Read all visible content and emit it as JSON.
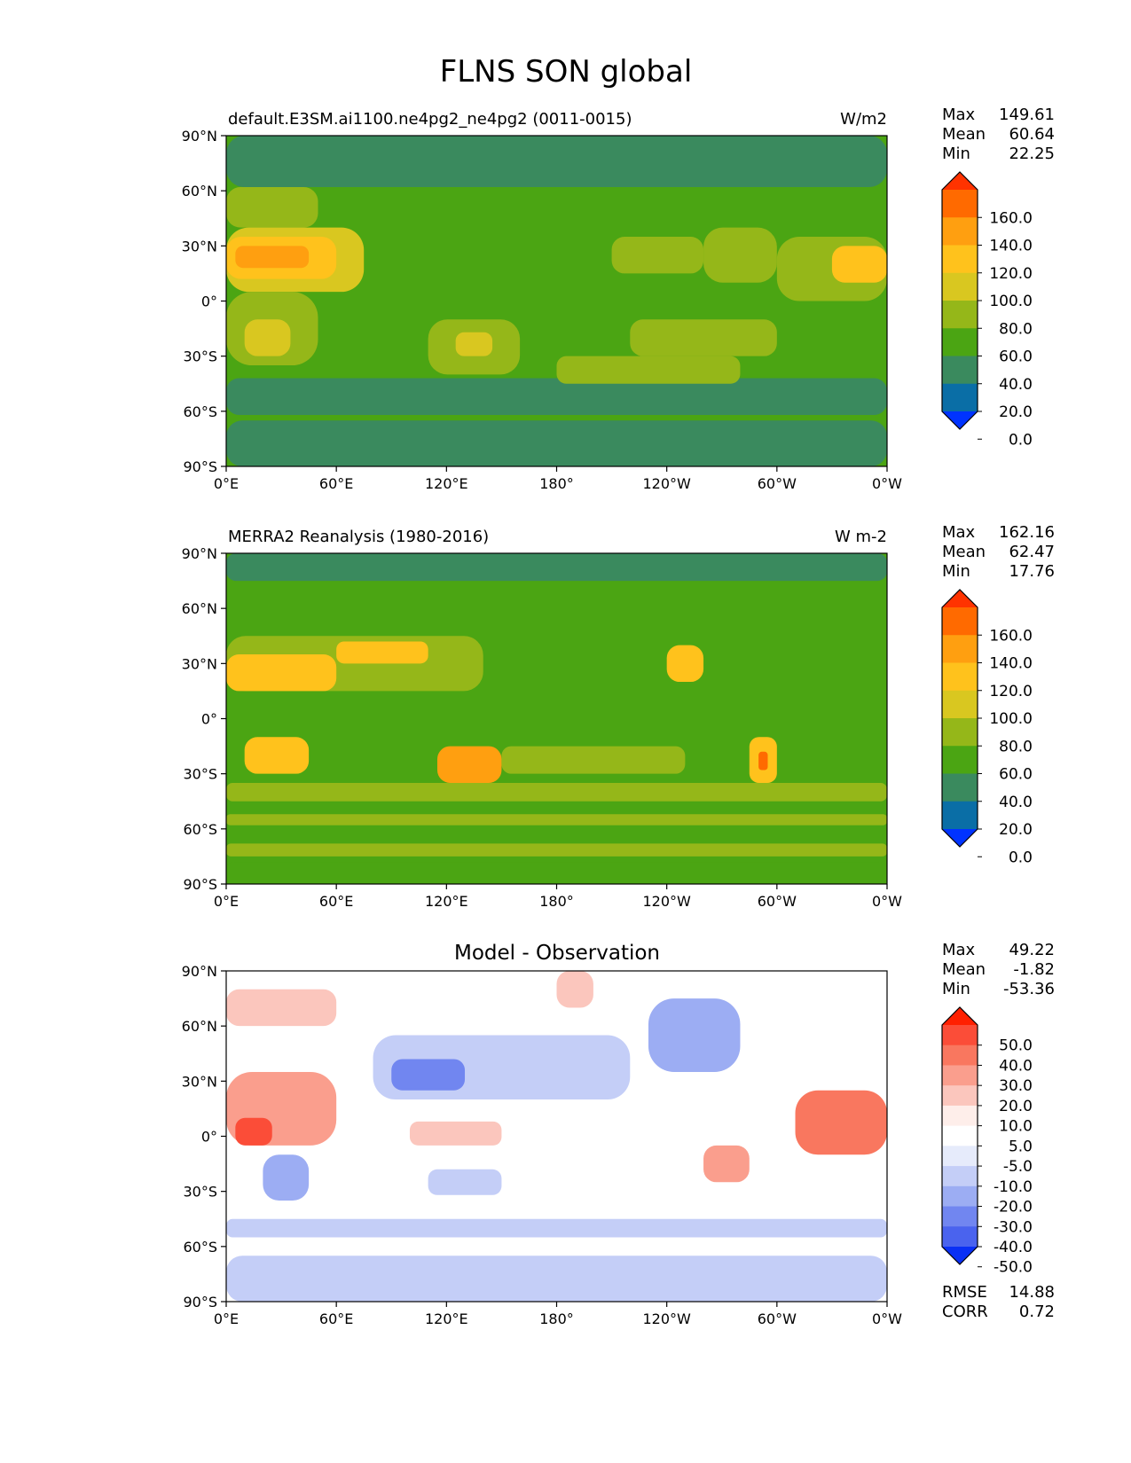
{
  "figure_title": "FLNS SON global",
  "chart_data": [
    {
      "type": "heatmap",
      "title_left": "default.E3SM.ai1100.ne4pg2_ne4pg2 (0011-0015)",
      "title_center": "",
      "units": "W/m2",
      "xlim": [
        0,
        360
      ],
      "ylim": [
        -90,
        90
      ],
      "x_ticks": [
        "0°E",
        "60°E",
        "120°E",
        "180°",
        "120°W",
        "60°W",
        "0°W"
      ],
      "y_ticks": [
        "90°S",
        "60°S",
        "30°S",
        "0°",
        "30°N",
        "60°N",
        "90°N"
      ],
      "stats": {
        "max_label": "Max",
        "max": "149.61",
        "mean_label": "Mean",
        "mean": "60.64",
        "min_label": "Min",
        "min": "22.25"
      },
      "colorbar": {
        "labels": [
          "160.0",
          "140.0",
          "120.0",
          "100.0",
          "80.0",
          "60.0",
          "40.0",
          "20.0",
          "0.0"
        ],
        "colors": [
          "#ff3300",
          "#ff6a00",
          "#ff9f10",
          "#ffc21c",
          "#d9c720",
          "#95b719",
          "#4ba513",
          "#3a8a5e",
          "#0a6ea6",
          "#0033ff"
        ]
      },
      "regions": [
        {
          "lon": [
            0,
            360
          ],
          "lat": [
            -90,
            90
          ],
          "value": 50
        },
        {
          "lon": [
            0,
            360
          ],
          "lat": [
            62,
            90
          ],
          "value": 35
        },
        {
          "lon": [
            0,
            360
          ],
          "lat": [
            -90,
            -65
          ],
          "value": 35
        },
        {
          "lon": [
            0,
            360
          ],
          "lat": [
            -62,
            -42
          ],
          "value": 35
        },
        {
          "lon": [
            0,
            50
          ],
          "lat": [
            40,
            62
          ],
          "value": 70
        },
        {
          "lon": [
            0,
            75
          ],
          "lat": [
            5,
            40
          ],
          "value": 80
        },
        {
          "lon": [
            0,
            60
          ],
          "lat": [
            12,
            35
          ],
          "value": 110
        },
        {
          "lon": [
            5,
            45
          ],
          "lat": [
            18,
            30
          ],
          "value": 125
        },
        {
          "lon": [
            0,
            50
          ],
          "lat": [
            -35,
            5
          ],
          "value": 75
        },
        {
          "lon": [
            10,
            35
          ],
          "lat": [
            -30,
            -10
          ],
          "value": 95
        },
        {
          "lon": [
            110,
            160
          ],
          "lat": [
            -40,
            -10
          ],
          "value": 75
        },
        {
          "lon": [
            125,
            145
          ],
          "lat": [
            -30,
            -17
          ],
          "value": 95
        },
        {
          "lon": [
            220,
            300
          ],
          "lat": [
            -30,
            -10
          ],
          "value": 70
        },
        {
          "lon": [
            260,
            300
          ],
          "lat": [
            10,
            40
          ],
          "value": 65
        },
        {
          "lon": [
            300,
            360
          ],
          "lat": [
            0,
            35
          ],
          "value": 75
        },
        {
          "lon": [
            330,
            360
          ],
          "lat": [
            10,
            30
          ],
          "value": 110
        },
        {
          "lon": [
            180,
            280
          ],
          "lat": [
            -45,
            -30
          ],
          "value": 60
        },
        {
          "lon": [
            210,
            260
          ],
          "lat": [
            15,
            35
          ],
          "value": 62
        }
      ]
    },
    {
      "type": "heatmap",
      "title_left": "MERRA2 Reanalysis (1980-2016)",
      "title_center": "",
      "units": "W m-2",
      "xlim": [
        0,
        360
      ],
      "ylim": [
        -90,
        90
      ],
      "x_ticks": [
        "0°E",
        "60°E",
        "120°E",
        "180°",
        "120°W",
        "60°W",
        "0°W"
      ],
      "y_ticks": [
        "90°S",
        "60°S",
        "30°S",
        "0°",
        "30°N",
        "60°N",
        "90°N"
      ],
      "stats": {
        "max_label": "Max",
        "max": "162.16",
        "mean_label": "Mean",
        "mean": "62.47",
        "min_label": "Min",
        "min": "17.76"
      },
      "colorbar": {
        "labels": [
          "160.0",
          "140.0",
          "120.0",
          "100.0",
          "80.0",
          "60.0",
          "40.0",
          "20.0",
          "0.0"
        ],
        "colors": [
          "#ff3300",
          "#ff6a00",
          "#ff9f10",
          "#ffc21c",
          "#d9c720",
          "#95b719",
          "#4ba513",
          "#3a8a5e",
          "#0a6ea6",
          "#0033ff"
        ]
      },
      "regions": [
        {
          "lon": [
            0,
            360
          ],
          "lat": [
            -90,
            90
          ],
          "value": 50
        },
        {
          "lon": [
            0,
            360
          ],
          "lat": [
            75,
            90
          ],
          "value": 35
        },
        {
          "lon": [
            0,
            360
          ],
          "lat": [
            -58,
            -52
          ],
          "value": 65
        },
        {
          "lon": [
            0,
            360
          ],
          "lat": [
            -75,
            -68
          ],
          "value": 70
        },
        {
          "lon": [
            0,
            360
          ],
          "lat": [
            -90,
            -78
          ],
          "value": 50
        },
        {
          "lon": [
            0,
            140
          ],
          "lat": [
            15,
            45
          ],
          "value": 75
        },
        {
          "lon": [
            0,
            60
          ],
          "lat": [
            15,
            35
          ],
          "value": 110
        },
        {
          "lon": [
            60,
            110
          ],
          "lat": [
            30,
            42
          ],
          "value": 115
        },
        {
          "lon": [
            10,
            45
          ],
          "lat": [
            -30,
            -10
          ],
          "value": 110
        },
        {
          "lon": [
            115,
            150
          ],
          "lat": [
            -35,
            -15
          ],
          "value": 120
        },
        {
          "lon": [
            240,
            260
          ],
          "lat": [
            20,
            40
          ],
          "value": 105
        },
        {
          "lon": [
            285,
            300
          ],
          "lat": [
            -35,
            -10
          ],
          "value": 110
        },
        {
          "lon": [
            290,
            295
          ],
          "lat": [
            -28,
            -18
          ],
          "value": 150
        },
        {
          "lon": [
            0,
            360
          ],
          "lat": [
            -45,
            -35
          ],
          "value": 62
        },
        {
          "lon": [
            150,
            250
          ],
          "lat": [
            -30,
            -15
          ],
          "value": 62
        }
      ]
    },
    {
      "type": "heatmap",
      "title_left": "",
      "title_center": "Model - Observation",
      "units": "",
      "xlim": [
        0,
        360
      ],
      "ylim": [
        -90,
        90
      ],
      "x_ticks": [
        "0°E",
        "60°E",
        "120°E",
        "180°",
        "120°W",
        "60°W",
        "0°W"
      ],
      "y_ticks": [
        "90°S",
        "60°S",
        "30°S",
        "0°",
        "30°N",
        "60°N",
        "90°N"
      ],
      "stats": {
        "max_label": "Max",
        "max": "49.22",
        "mean_label": "Mean",
        "mean": "-1.82",
        "min_label": "Min",
        "min": "-53.36"
      },
      "extra_stats": {
        "rmse_label": "RMSE",
        "rmse": "14.88",
        "corr_label": "CORR",
        "corr": "0.72"
      },
      "colorbar": {
        "labels": [
          "50.0",
          "40.0",
          "30.0",
          "20.0",
          "10.0",
          "5.0",
          "-5.0",
          "-10.0",
          "-20.0",
          "-30.0",
          "-40.0",
          "-50.0"
        ],
        "colors": [
          "#ff2000",
          "#fb4d38",
          "#f9775f",
          "#fa9e8d",
          "#fbc6bd",
          "#feeeea",
          "#ffffff",
          "#e6ebfb",
          "#c4cef7",
          "#9cadf3",
          "#7186f0",
          "#4a63ee",
          "#0a30f5"
        ]
      },
      "regions": [
        {
          "lon": [
            0,
            360
          ],
          "lat": [
            -90,
            90
          ],
          "value": 0
        },
        {
          "lon": [
            80,
            220
          ],
          "lat": [
            20,
            55
          ],
          "value": -18
        },
        {
          "lon": [
            90,
            130
          ],
          "lat": [
            25,
            42
          ],
          "value": -40
        },
        {
          "lon": [
            230,
            280
          ],
          "lat": [
            35,
            75
          ],
          "value": -22
        },
        {
          "lon": [
            0,
            60
          ],
          "lat": [
            -5,
            35
          ],
          "value": 25
        },
        {
          "lon": [
            5,
            25
          ],
          "lat": [
            -5,
            10
          ],
          "value": 45
        },
        {
          "lon": [
            20,
            45
          ],
          "lat": [
            -35,
            -10
          ],
          "value": -25
        },
        {
          "lon": [
            310,
            360
          ],
          "lat": [
            -10,
            25
          ],
          "value": 30
        },
        {
          "lon": [
            260,
            285
          ],
          "lat": [
            -25,
            -5
          ],
          "value": 25
        },
        {
          "lon": [
            110,
            150
          ],
          "lat": [
            -32,
            -18
          ],
          "value": -20
        },
        {
          "lon": [
            0,
            360
          ],
          "lat": [
            -90,
            -65
          ],
          "value": -20
        },
        {
          "lon": [
            0,
            360
          ],
          "lat": [
            -55,
            -45
          ],
          "value": -12
        },
        {
          "lon": [
            100,
            150
          ],
          "lat": [
            -5,
            8
          ],
          "value": 15
        },
        {
          "lon": [
            0,
            60
          ],
          "lat": [
            60,
            80
          ],
          "value": 15
        },
        {
          "lon": [
            180,
            200
          ],
          "lat": [
            70,
            90
          ],
          "value": 15
        }
      ]
    }
  ]
}
